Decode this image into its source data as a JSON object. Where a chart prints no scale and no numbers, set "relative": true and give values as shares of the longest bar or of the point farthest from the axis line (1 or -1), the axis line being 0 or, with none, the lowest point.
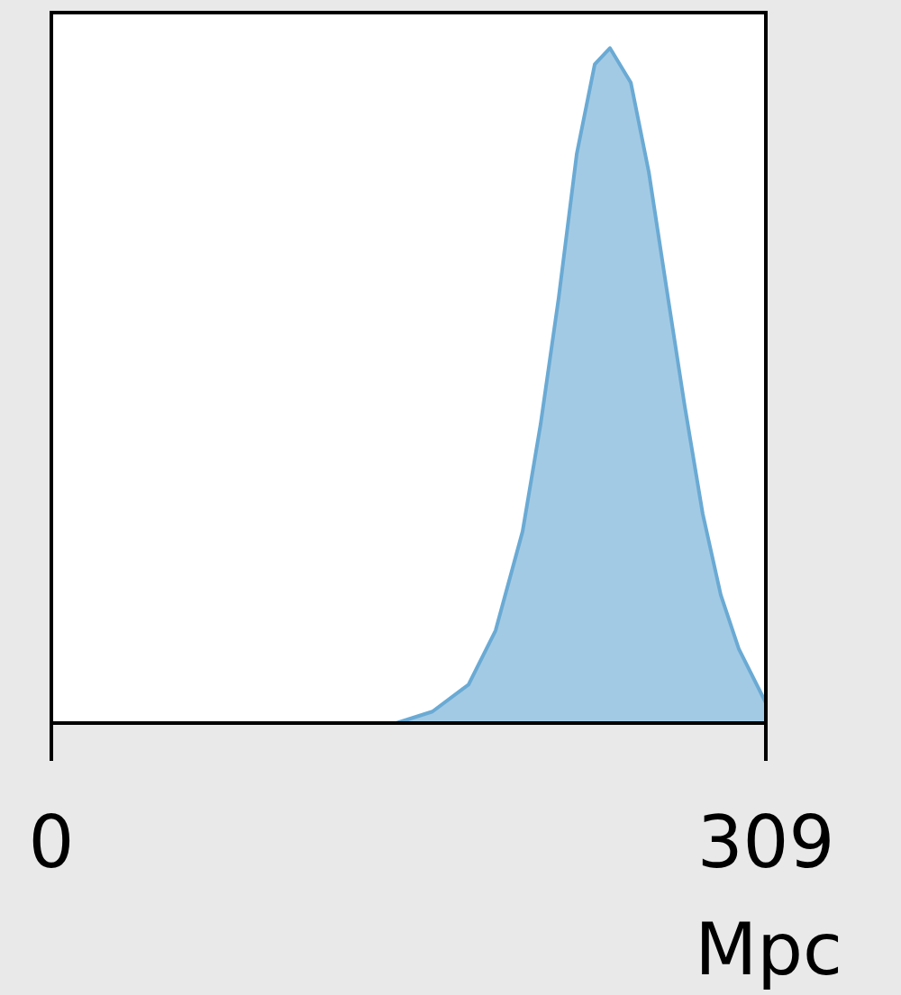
{
  "chart_data": {
    "type": "area",
    "xlabel": "Mpc",
    "relative": true,
    "xlim": [
      0,
      309
    ],
    "xticks": [
      0,
      309
    ],
    "tick_labels": "x",
    "series": [
      {
        "color": "#6aaad4",
        "x": [
          0,
          140,
          149.2,
          164.8,
          180.4,
          192.1,
          203.8,
          211.6,
          219.4,
          227.2,
          235.0,
          241.6,
          250.6,
          258.4,
          266.1,
          273.9,
          281.7,
          289.5,
          297.3,
          309
        ],
        "values": [
          0,
          0,
          0,
          0.017,
          0.057,
          0.137,
          0.284,
          0.443,
          0.63,
          0.843,
          0.976,
          1,
          0.949,
          0.816,
          0.643,
          0.47,
          0.31,
          0.19,
          0.11,
          0.03
        ]
      }
    ]
  }
}
